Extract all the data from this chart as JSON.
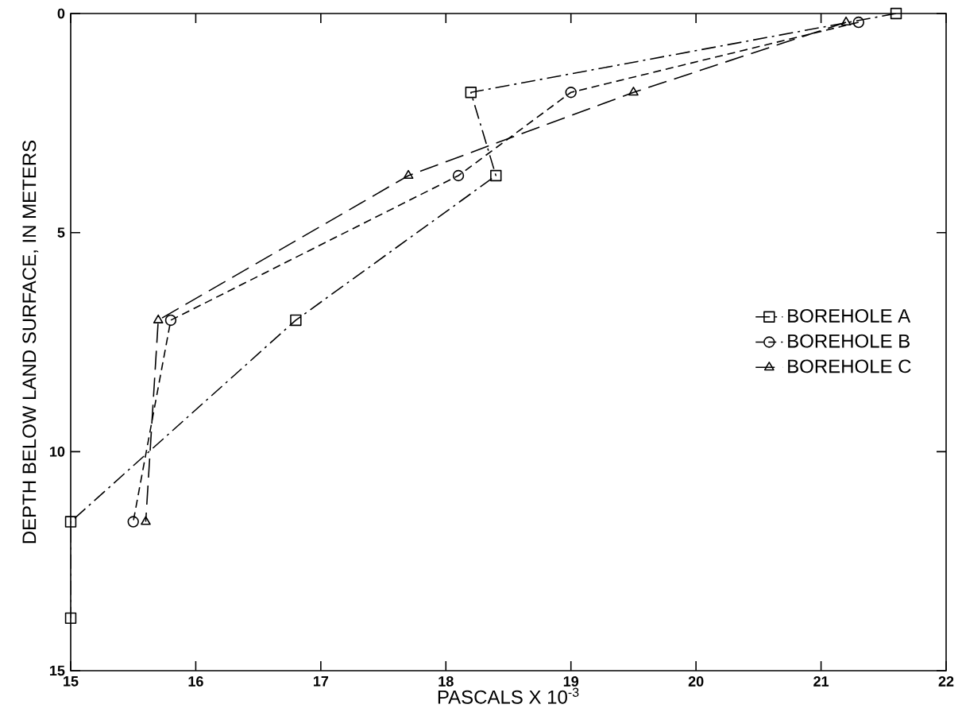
{
  "chart_data": {
    "type": "line",
    "xlabel": "PASCALS X 10$^{-3}$",
    "ylabel": "DEPTH BELOW LAND SURFACE, IN METERS",
    "xlim": [
      15,
      22
    ],
    "xticks": [
      15,
      16,
      17,
      18,
      19,
      20,
      21,
      22
    ],
    "ylim": [
      15,
      0
    ],
    "yticks": [
      0,
      5,
      10,
      15
    ],
    "legend": "right",
    "grid": false,
    "series": [
      {
        "name": "BOREHOLE A",
        "color": "#000000",
        "marker": "square",
        "line_style": "dashdot",
        "x": [
          21.6,
          18.2,
          18.4,
          16.8,
          15.0,
          15.0
        ],
        "values": [
          0,
          1.8,
          3.7,
          7.0,
          11.6,
          13.8
        ]
      },
      {
        "name": "BOREHOLE B",
        "color": "#000000",
        "marker": "circle",
        "line_style": "dashed",
        "x": [
          21.3,
          19.0,
          18.1,
          15.8,
          15.5
        ],
        "values": [
          0.2,
          1.8,
          3.7,
          7.0,
          11.6
        ]
      },
      {
        "name": "BOREHOLE C",
        "color": "#000000",
        "marker": "triangle",
        "line_style": "longdashed",
        "x": [
          21.2,
          19.5,
          17.7,
          15.7,
          15.6
        ],
        "values": [
          0.2,
          1.8,
          3.7,
          7.0,
          11.6
        ]
      }
    ]
  }
}
